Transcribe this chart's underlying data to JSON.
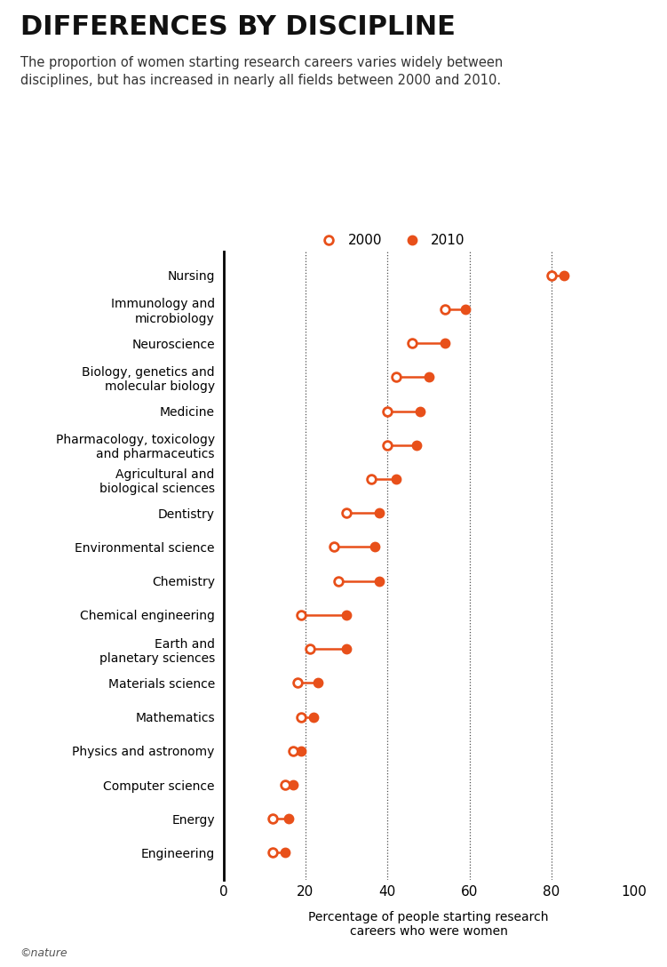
{
  "title": "DIFFERENCES BY DISCIPLINE",
  "subtitle": "The proportion of women starting research careers varies widely between\ndisciplines, but has increased in nearly all fields between 2000 and 2010.",
  "xlabel": "Percentage of people starting research\ncareers who were women",
  "copyright": "©nature",
  "legend_labels": [
    "2000",
    "2010"
  ],
  "color": "#e8501a",
  "categories": [
    "Nursing",
    "Immunology and\nmicrobiology",
    "Neuroscience",
    "Biology, genetics and\nmolecular biology",
    "Medicine",
    "Pharmacology, toxicology\nand pharmaceutics",
    "Agricultural and\nbiological sciences",
    "Dentistry",
    "Environmental science",
    "Chemistry",
    "Chemical engineering",
    "Earth and\nplanetary sciences",
    "Materials science",
    "Mathematics",
    "Physics and astronomy",
    "Computer science",
    "Energy",
    "Engineering"
  ],
  "values_2000": [
    80,
    54,
    46,
    42,
    40,
    40,
    36,
    30,
    27,
    28,
    19,
    21,
    18,
    19,
    17,
    15,
    12,
    12
  ],
  "values_2010": [
    83,
    59,
    54,
    50,
    48,
    47,
    42,
    38,
    37,
    38,
    30,
    30,
    23,
    22,
    19,
    17,
    16,
    15
  ],
  "xlim": [
    0,
    100
  ],
  "xticks": [
    0,
    20,
    40,
    60,
    80,
    100
  ],
  "vlines": [
    20,
    40,
    60,
    80
  ],
  "bg_color": "#ffffff",
  "marker_size": 7,
  "line_width": 1.8,
  "title_fontsize": 22,
  "subtitle_fontsize": 10.5,
  "tick_fontsize": 11,
  "ylabel_fontsize": 10,
  "xlabel_fontsize": 10,
  "legend_fontsize": 11
}
